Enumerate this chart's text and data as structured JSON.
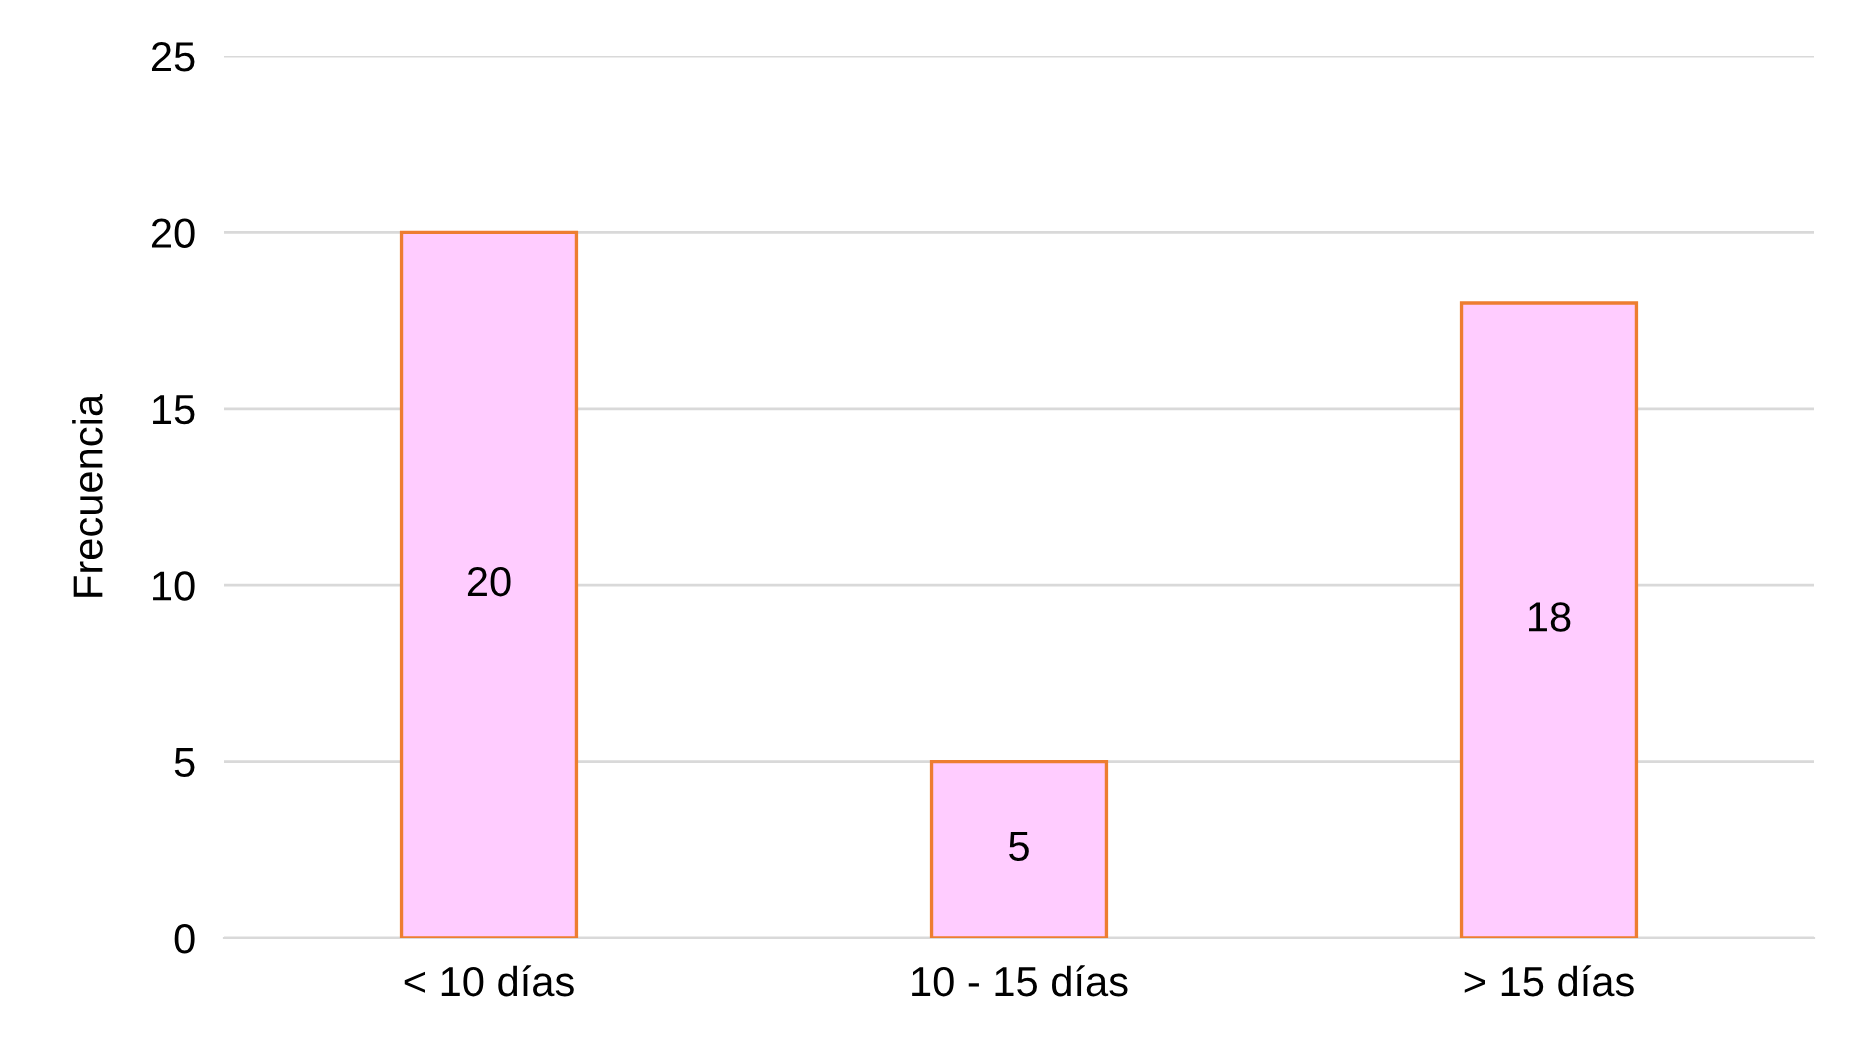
{
  "chart_data": {
    "type": "bar",
    "ylabel": "Frecuencia",
    "categories": [
      "< 10 días",
      "10 - 15 días",
      "> 15 días"
    ],
    "values": [
      20,
      5,
      18
    ],
    "color": "#ffccff",
    "ylim": [
      0,
      25
    ],
    "yticks": [
      0,
      5,
      10,
      15,
      20,
      25
    ],
    "grid": "y",
    "data_labels": true,
    "legend": false
  }
}
